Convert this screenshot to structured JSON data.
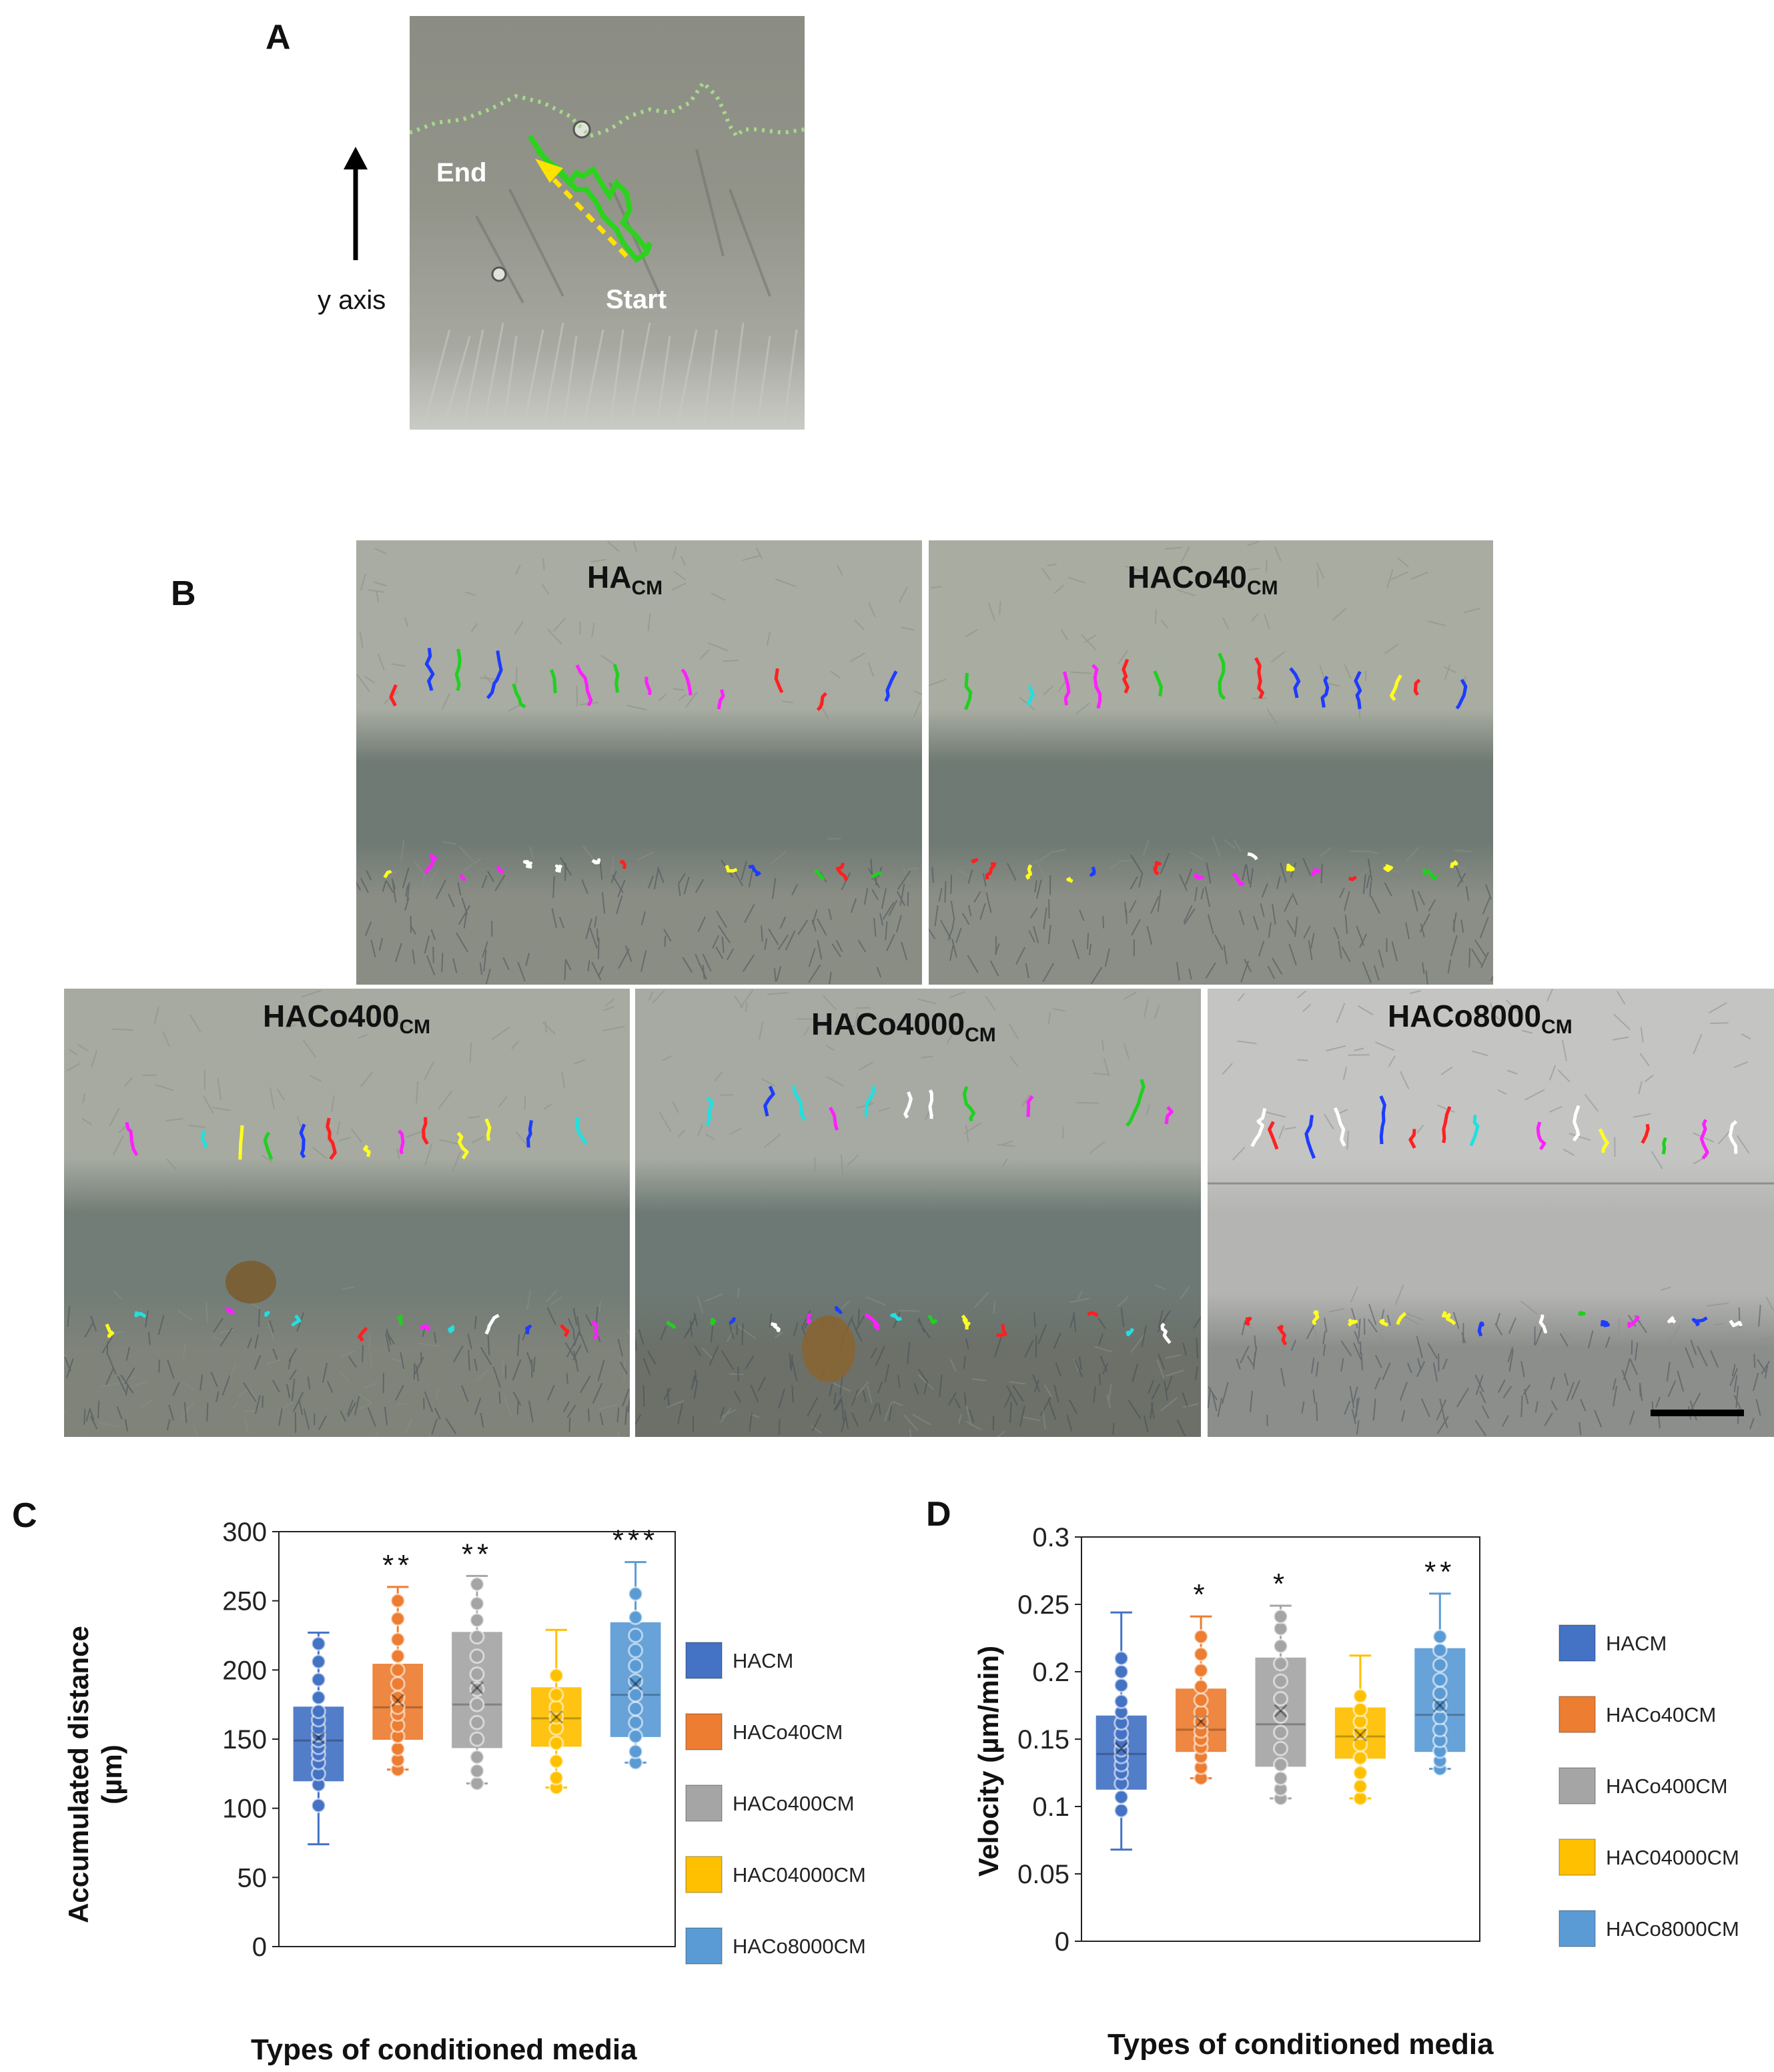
{
  "panelA": {
    "label": "A",
    "axis_label": "y axis",
    "end_label": "End",
    "start_label": "Start"
  },
  "panelB": {
    "label": "B",
    "images": [
      {
        "name": "HA",
        "sub": "CM"
      },
      {
        "name": "HACo40",
        "sub": "CM"
      },
      {
        "name": "HACo400",
        "sub": "CM"
      },
      {
        "name": "HACo4000",
        "sub": "CM"
      },
      {
        "name": "HACo8000",
        "sub": "CM"
      }
    ]
  },
  "colors": {
    "HACM": "#4472c4",
    "HACo40CM": "#ed7d31",
    "HACo400CM": "#a5a5a5",
    "HAC04000CM": "#ffc000",
    "HACo8000CM": "#5b9bd5"
  },
  "legend": [
    "HACM",
    "HACo40CM",
    "HACo400CM",
    "HAC04000CM",
    "HACo8000CM"
  ],
  "chart_data": [
    {
      "panel": "C",
      "type": "box",
      "title": "",
      "xlabel": "Types of conditioned media",
      "ylabel": "Accumulated distance (µm)",
      "ylabel_lines": [
        "Accumulated distance",
        "(µm)"
      ],
      "ylim": [
        0,
        300
      ],
      "yticks": [
        0,
        50,
        100,
        150,
        200,
        250,
        300
      ],
      "series": [
        {
          "name": "HACM",
          "min": 74,
          "q1": 120,
          "median": 149,
          "mean": 151,
          "q3": 173,
          "max": 227,
          "significance": "",
          "points": [
            102,
            117,
            125,
            133,
            139,
            144,
            149,
            153,
            158,
            164,
            170,
            180,
            193,
            206,
            219
          ]
        },
        {
          "name": "HACo40CM",
          "min": 128,
          "q1": 150,
          "median": 173,
          "mean": 178,
          "q3": 204,
          "max": 260,
          "significance": "**",
          "points": [
            128,
            135,
            143,
            152,
            160,
            168,
            173,
            180,
            190,
            200,
            210,
            222,
            237,
            250
          ]
        },
        {
          "name": "HACo400CM",
          "min": 118,
          "q1": 144,
          "median": 175,
          "mean": 187,
          "q3": 227,
          "max": 268,
          "significance": "**",
          "points": [
            118,
            127,
            137,
            150,
            162,
            175,
            186,
            197,
            210,
            224,
            236,
            248,
            262
          ]
        },
        {
          "name": "HAC04000CM",
          "min": 115,
          "q1": 145,
          "median": 165,
          "mean": 166,
          "q3": 187,
          "max": 229,
          "significance": "",
          "points": [
            115,
            122,
            134,
            147,
            158,
            166,
            173,
            182,
            196
          ]
        },
        {
          "name": "HACo8000CM",
          "min": 133,
          "q1": 152,
          "median": 182,
          "mean": 190,
          "q3": 234,
          "max": 278,
          "significance": "***",
          "points": [
            133,
            141,
            152,
            162,
            172,
            182,
            192,
            203,
            214,
            225,
            238,
            255
          ]
        }
      ]
    },
    {
      "panel": "D",
      "type": "box",
      "title": "",
      "xlabel": "Types of conditioned media",
      "ylabel": "Velocity (µm/min)",
      "ylabel_lines": [
        "Velocity (µm/min)"
      ],
      "ylim": [
        0,
        0.3
      ],
      "yticks": [
        0,
        0.05,
        0.1,
        0.15,
        0.2,
        0.25,
        0.3
      ],
      "ytick_labels": [
        "0",
        "0.05",
        "0.1",
        "0.15",
        "0.2",
        "0.25",
        "0.3"
      ],
      "series": [
        {
          "name": "HACM",
          "min": 0.068,
          "q1": 0.113,
          "median": 0.139,
          "mean": 0.143,
          "q3": 0.167,
          "max": 0.244,
          "significance": "",
          "points": [
            0.097,
            0.107,
            0.117,
            0.125,
            0.131,
            0.137,
            0.142,
            0.148,
            0.154,
            0.162,
            0.17,
            0.178,
            0.19,
            0.2,
            0.21
          ]
        },
        {
          "name": "HACo40CM",
          "min": 0.121,
          "q1": 0.141,
          "median": 0.157,
          "mean": 0.163,
          "q3": 0.187,
          "max": 0.241,
          "significance": "*",
          "points": [
            0.121,
            0.129,
            0.137,
            0.144,
            0.15,
            0.156,
            0.163,
            0.17,
            0.179,
            0.189,
            0.201,
            0.213,
            0.226
          ]
        },
        {
          "name": "HACo400CM",
          "min": 0.106,
          "q1": 0.13,
          "median": 0.161,
          "mean": 0.171,
          "q3": 0.21,
          "max": 0.249,
          "significance": "*",
          "points": [
            0.106,
            0.113,
            0.121,
            0.131,
            0.143,
            0.155,
            0.167,
            0.18,
            0.193,
            0.206,
            0.219,
            0.232,
            0.241
          ]
        },
        {
          "name": "HAC04000CM",
          "min": 0.106,
          "q1": 0.136,
          "median": 0.152,
          "mean": 0.153,
          "q3": 0.173,
          "max": 0.212,
          "significance": "",
          "points": [
            0.106,
            0.115,
            0.125,
            0.136,
            0.146,
            0.155,
            0.163,
            0.172,
            0.182
          ]
        },
        {
          "name": "HACo8000CM",
          "min": 0.128,
          "q1": 0.141,
          "median": 0.168,
          "mean": 0.175,
          "q3": 0.217,
          "max": 0.258,
          "significance": "**",
          "points": [
            0.128,
            0.134,
            0.141,
            0.149,
            0.157,
            0.166,
            0.175,
            0.184,
            0.194,
            0.205,
            0.216,
            0.226
          ]
        }
      ]
    }
  ]
}
